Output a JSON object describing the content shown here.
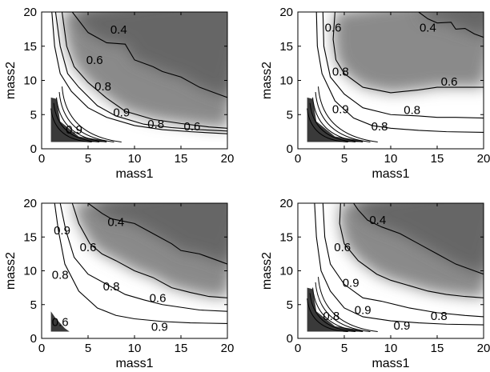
{
  "chart_data": [
    {
      "type": "heatmap",
      "title": "",
      "xlabel": "mass1",
      "ylabel": "mass2",
      "xlim": [
        0,
        20
      ],
      "ylim": [
        0,
        20
      ],
      "xticks": [
        "0",
        "5",
        "10",
        "15",
        "20"
      ],
      "yticks": [
        "0",
        "5",
        "10",
        "15",
        "20"
      ],
      "colormap": "grayscale",
      "contour_levels": [
        0.4,
        0.6,
        0.8,
        0.9
      ],
      "contours": [
        {
          "level": "0.4",
          "points": [
            [
              3.3,
              20
            ],
            [
              5,
              17
            ],
            [
              7,
              15.5
            ],
            [
              9,
              15.3
            ],
            [
              10,
              13
            ],
            [
              12,
              12
            ],
            [
              13,
              11.3
            ],
            [
              15,
              10.5
            ],
            [
              17,
              9
            ],
            [
              19,
              8
            ],
            [
              20,
              7.5
            ]
          ]
        },
        {
          "level": "0.6",
          "points": [
            [
              2.2,
              20
            ],
            [
              2.7,
              15
            ],
            [
              3.5,
              12
            ],
            [
              5,
              9.7
            ],
            [
              7,
              7.4
            ],
            [
              9,
              5.5
            ],
            [
              12,
              4.3
            ],
            [
              15,
              3.7
            ],
            [
              18,
              3.2
            ],
            [
              20,
              3
            ]
          ]
        },
        {
          "level": "0.8",
          "points": [
            [
              1.5,
              20
            ],
            [
              2,
              15
            ],
            [
              2.8,
              11
            ],
            [
              4,
              9
            ],
            [
              6,
              6.3
            ],
            [
              8,
              4.8
            ],
            [
              11,
              3.6
            ],
            [
              14,
              3.1
            ],
            [
              17,
              2.8
            ],
            [
              20,
              2.6
            ]
          ]
        },
        {
          "level": "0.9",
          "points": [
            [
              1.1,
              20
            ],
            [
              1.4,
              15
            ],
            [
              2,
              11
            ],
            [
              3.2,
              8.4
            ],
            [
              5,
              6
            ],
            [
              7,
              4.6
            ],
            [
              10,
              3.4
            ],
            [
              13,
              2.8
            ],
            [
              16,
              2.5
            ],
            [
              20,
              2.2
            ]
          ]
        }
      ],
      "labels": [
        {
          "text": "0.4",
          "x": 8.3,
          "y": 17.4
        },
        {
          "text": "0.6",
          "x": 5.7,
          "y": 13.0
        },
        {
          "text": "0.8",
          "x": 6.6,
          "y": 9.1
        },
        {
          "text": "0.9",
          "x": 8.6,
          "y": 5.3
        },
        {
          "text": "0.8",
          "x": 12.3,
          "y": 3.6
        },
        {
          "text": "0.6",
          "x": 16.2,
          "y": 3.3
        },
        {
          "text": "0.9",
          "x": 3.5,
          "y": 2.8
        }
      ],
      "corner_contours": true
    },
    {
      "type": "heatmap",
      "title": "",
      "xlabel": "mass1",
      "ylabel": "mass2",
      "xlim": [
        0,
        20
      ],
      "ylim": [
        0,
        20
      ],
      "xticks": [
        "0",
        "5",
        "10",
        "15",
        "20"
      ],
      "yticks": [
        "0",
        "5",
        "10",
        "15",
        "20"
      ],
      "colormap": "grayscale",
      "contour_levels": [
        0.4,
        0.6,
        0.8,
        0.9
      ],
      "contours": [
        {
          "level": "0.4",
          "points": [
            [
              13,
              20
            ],
            [
              14,
              19
            ],
            [
              15,
              18.4
            ],
            [
              16.5,
              18.5
            ],
            [
              17,
              17.5
            ],
            [
              18,
              17.6
            ],
            [
              19,
              16.8
            ],
            [
              20,
              16.3
            ]
          ]
        },
        {
          "level": "0.6",
          "points": [
            [
              4,
              20
            ],
            [
              3.8,
              16
            ],
            [
              4.1,
              13
            ],
            [
              5,
              11
            ],
            [
              7,
              9
            ],
            [
              10,
              8.2
            ],
            [
              13,
              8.6
            ],
            [
              15,
              9
            ],
            [
              18,
              9
            ],
            [
              20,
              9
            ]
          ]
        },
        {
          "level": "0.8",
          "points": [
            [
              2.7,
              20
            ],
            [
              2.8,
              15
            ],
            [
              3.5,
              10.5
            ],
            [
              5,
              8
            ],
            [
              7,
              6
            ],
            [
              10,
              5
            ],
            [
              13,
              4.8
            ],
            [
              15,
              4.6
            ],
            [
              17,
              4.6
            ],
            [
              20,
              4.5
            ]
          ]
        },
        {
          "level": "0.9",
          "points": [
            [
              2,
              20
            ],
            [
              2.1,
              15
            ],
            [
              2.6,
              11
            ],
            [
              4,
              7
            ],
            [
              6,
              4.5
            ],
            [
              8,
              3.4
            ],
            [
              10,
              3
            ],
            [
              13,
              2.7
            ],
            [
              16,
              2.5
            ],
            [
              20,
              2.4
            ]
          ]
        }
      ],
      "labels": [
        {
          "text": "0.6",
          "x": 3.8,
          "y": 17.7
        },
        {
          "text": "0.4",
          "x": 14.0,
          "y": 17.7
        },
        {
          "text": "0.8",
          "x": 4.6,
          "y": 11.3
        },
        {
          "text": "0.6",
          "x": 16.3,
          "y": 9.8
        },
        {
          "text": "0.9",
          "x": 4.6,
          "y": 5.8
        },
        {
          "text": "0.8",
          "x": 12.3,
          "y": 5.7
        },
        {
          "text": "0.8",
          "x": 8.8,
          "y": 3.3
        }
      ],
      "corner_contours": true
    },
    {
      "type": "heatmap",
      "title": "",
      "xlabel": "mass1",
      "ylabel": "mass2",
      "xlim": [
        0,
        20
      ],
      "ylim": [
        0,
        20
      ],
      "xticks": [
        "0",
        "5",
        "10",
        "15",
        "20"
      ],
      "yticks": [
        "0",
        "5",
        "10",
        "15",
        "20"
      ],
      "colormap": "grayscale",
      "contour_levels": [
        0.4,
        0.6,
        0.8,
        0.9
      ],
      "contours": [
        {
          "level": "0.4",
          "points": [
            [
              5,
              20
            ],
            [
              6.5,
              18.5
            ],
            [
              7.5,
              17.7
            ],
            [
              10,
              17
            ],
            [
              12,
              15.5
            ],
            [
              14,
              14
            ],
            [
              15,
              13
            ],
            [
              17,
              12.5
            ],
            [
              19,
              11.5
            ],
            [
              20,
              11
            ]
          ]
        },
        {
          "level": "0.6",
          "points": [
            [
              3.3,
              20
            ],
            [
              4,
              17
            ],
            [
              5.2,
              14
            ],
            [
              6.5,
              12.5
            ],
            [
              8,
              11.5
            ],
            [
              10,
              10
            ],
            [
              12,
              9
            ],
            [
              14,
              7.5
            ],
            [
              16,
              6.8
            ],
            [
              18,
              6.2
            ],
            [
              20,
              6
            ]
          ]
        },
        {
          "level": "0.8",
          "points": [
            [
              2,
              20
            ],
            [
              2.6,
              16
            ],
            [
              3.5,
              12
            ],
            [
              5,
              9.5
            ],
            [
              7,
              8
            ],
            [
              9,
              6.5
            ],
            [
              11,
              5.7
            ],
            [
              13,
              5
            ],
            [
              15,
              4.6
            ],
            [
              17,
              4.2
            ],
            [
              20,
              4
            ]
          ]
        },
        {
          "level": "0.9",
          "points": [
            [
              1.4,
              20
            ],
            [
              1.8,
              16
            ],
            [
              2.5,
              11
            ],
            [
              4,
              7
            ],
            [
              6,
              4.5
            ],
            [
              8,
              3.4
            ],
            [
              10,
              2.9
            ],
            [
              13,
              2.5
            ],
            [
              16,
              2.3
            ],
            [
              20,
              2.2
            ]
          ]
        }
      ],
      "labels": [
        {
          "text": "0.4",
          "x": 8.0,
          "y": 17.2
        },
        {
          "text": "0.9",
          "x": 2.2,
          "y": 16.0
        },
        {
          "text": "0.6",
          "x": 5.0,
          "y": 13.5
        },
        {
          "text": "0.8",
          "x": 2.0,
          "y": 9.4
        },
        {
          "text": "0.8",
          "x": 7.5,
          "y": 7.7
        },
        {
          "text": "0.6",
          "x": 12.5,
          "y": 6.0
        },
        {
          "text": "0.6",
          "x": 2.0,
          "y": 2.4
        },
        {
          "text": "0.9",
          "x": 12.7,
          "y": 1.7
        }
      ],
      "corner_contours": false
    },
    {
      "type": "heatmap",
      "title": "",
      "xlabel": "mass1",
      "ylabel": "mass2",
      "xlim": [
        0,
        20
      ],
      "ylim": [
        0,
        20
      ],
      "xticks": [
        "0",
        "5",
        "10",
        "15",
        "20"
      ],
      "yticks": [
        "0",
        "5",
        "10",
        "15",
        "20"
      ],
      "colormap": "grayscale",
      "contour_levels": [
        0.4,
        0.6,
        0.8,
        0.9
      ],
      "contours": [
        {
          "level": "0.4",
          "points": [
            [
              6,
              20
            ],
            [
              6.5,
              19
            ],
            [
              7.5,
              17.5
            ],
            [
              9,
              16.5
            ],
            [
              11,
              15.5
            ],
            [
              13,
              14
            ],
            [
              15,
              12.5
            ],
            [
              17,
              11
            ],
            [
              19,
              10
            ],
            [
              20,
              9.5
            ]
          ]
        },
        {
          "level": "0.6",
          "points": [
            [
              4.6,
              20
            ],
            [
              4.5,
              17
            ],
            [
              5,
              14
            ],
            [
              6.5,
              11.5
            ],
            [
              8.5,
              9.5
            ],
            [
              10,
              8.6
            ],
            [
              12,
              7.8
            ],
            [
              14,
              7
            ],
            [
              16,
              6.5
            ],
            [
              18,
              6.2
            ],
            [
              20,
              6
            ]
          ]
        },
        {
          "level": "0.8",
          "points": [
            [
              2.7,
              20
            ],
            [
              2.9,
              15
            ],
            [
              3.5,
              11
            ],
            [
              5,
              8
            ],
            [
              7,
              6
            ],
            [
              9,
              5.5
            ],
            [
              12,
              4.5
            ],
            [
              15,
              3.8
            ],
            [
              18,
              3.4
            ],
            [
              20,
              3.2
            ]
          ]
        },
        {
          "level": "0.9",
          "points": [
            [
              1.8,
              20
            ],
            [
              2,
              15
            ],
            [
              2.5,
              10
            ],
            [
              3.5,
              7
            ],
            [
              5,
              4.5
            ],
            [
              7,
              3.2
            ],
            [
              10,
              2.6
            ],
            [
              13,
              2.3
            ],
            [
              16,
              2.1
            ],
            [
              20,
              2
            ]
          ]
        }
      ],
      "labels": [
        {
          "text": "0.4",
          "x": 8.6,
          "y": 17.5
        },
        {
          "text": "0.6",
          "x": 4.8,
          "y": 13.5
        },
        {
          "text": "0.9",
          "x": 5.7,
          "y": 8.2
        },
        {
          "text": "0.8",
          "x": 3.6,
          "y": 3.3
        },
        {
          "text": "0.9",
          "x": 7.0,
          "y": 4.2
        },
        {
          "text": "0.8",
          "x": 15.2,
          "y": 3.3
        },
        {
          "text": "0.9",
          "x": 11.2,
          "y": 1.9
        }
      ],
      "corner_contours": true
    }
  ]
}
